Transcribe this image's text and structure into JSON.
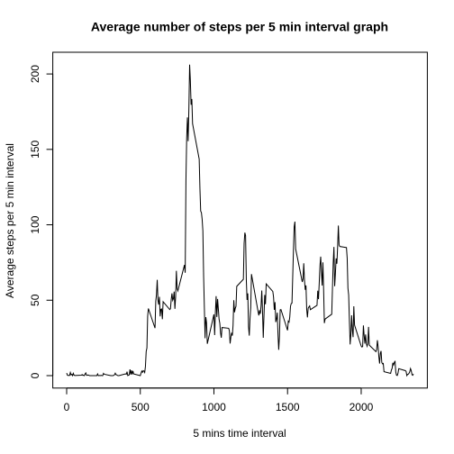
{
  "chart_data": {
    "type": "line",
    "title": "Average number of steps per 5 min interval graph",
    "xlabel": "5 mins time interval",
    "ylabel": "Average steps per 5 min interval",
    "color": "#000000",
    "xlim": [
      -94.2,
      2449.2
    ],
    "xticks": [
      0,
      500,
      1000,
      1500,
      2000
    ],
    "ylim": [
      -8.25,
      214.4
    ],
    "yticks": [
      0,
      50,
      100,
      150,
      200
    ],
    "x": [
      0,
      5,
      10,
      15,
      20,
      25,
      30,
      35,
      40,
      45,
      50,
      55,
      100,
      105,
      110,
      115,
      120,
      125,
      130,
      135,
      140,
      145,
      150,
      155,
      200,
      205,
      210,
      215,
      220,
      225,
      230,
      235,
      240,
      245,
      250,
      255,
      300,
      305,
      310,
      315,
      320,
      325,
      330,
      335,
      340,
      345,
      350,
      355,
      400,
      405,
      410,
      415,
      420,
      425,
      430,
      435,
      440,
      445,
      450,
      455,
      500,
      505,
      510,
      515,
      520,
      525,
      530,
      535,
      540,
      545,
      550,
      555,
      600,
      605,
      610,
      615,
      620,
      625,
      630,
      635,
      640,
      645,
      650,
      655,
      700,
      705,
      710,
      715,
      720,
      725,
      730,
      735,
      740,
      745,
      750,
      755,
      800,
      805,
      810,
      815,
      820,
      825,
      830,
      835,
      840,
      845,
      850,
      855,
      900,
      905,
      910,
      915,
      920,
      925,
      930,
      935,
      940,
      945,
      950,
      955,
      1000,
      1005,
      1010,
      1015,
      1020,
      1025,
      1030,
      1035,
      1040,
      1045,
      1050,
      1055,
      1100,
      1105,
      1110,
      1115,
      1120,
      1125,
      1130,
      1135,
      1140,
      1145,
      1150,
      1155,
      1200,
      1205,
      1210,
      1215,
      1220,
      1225,
      1230,
      1235,
      1240,
      1245,
      1250,
      1255,
      1300,
      1305,
      1310,
      1315,
      1320,
      1325,
      1330,
      1335,
      1340,
      1345,
      1350,
      1355,
      1400,
      1405,
      1410,
      1415,
      1420,
      1425,
      1430,
      1435,
      1440,
      1445,
      1450,
      1455,
      1500,
      1505,
      1510,
      1515,
      1520,
      1525,
      1530,
      1535,
      1540,
      1545,
      1550,
      1555,
      1600,
      1605,
      1610,
      1615,
      1620,
      1625,
      1630,
      1635,
      1640,
      1645,
      1650,
      1655,
      1700,
      1705,
      1710,
      1715,
      1720,
      1725,
      1730,
      1735,
      1740,
      1745,
      1750,
      1755,
      1800,
      1805,
      1810,
      1815,
      1820,
      1825,
      1830,
      1835,
      1840,
      1845,
      1850,
      1855,
      1900,
      1905,
      1910,
      1915,
      1920,
      1925,
      1930,
      1935,
      1940,
      1945,
      1950,
      1955,
      2000,
      2005,
      2010,
      2015,
      2020,
      2025,
      2030,
      2035,
      2040,
      2045,
      2050,
      2055,
      2100,
      2105,
      2110,
      2115,
      2120,
      2125,
      2130,
      2135,
      2140,
      2145,
      2150,
      2155,
      2200,
      2205,
      2210,
      2215,
      2220,
      2225,
      2230,
      2235,
      2240,
      2245,
      2250,
      2255,
      2300,
      2305,
      2310,
      2315,
      2320,
      2325,
      2330,
      2335,
      2340,
      2345,
      2350,
      2355
    ],
    "values": [
      1.7,
      0.3,
      0.1,
      0.2,
      0.1,
      2.1,
      0.5,
      0.9,
      0,
      1.5,
      0.3,
      0.1,
      0.3,
      0.7,
      0.2,
      0.3,
      0,
      1.1,
      1.8,
      0.2,
      0.2,
      0.4,
      0.3,
      0,
      0,
      0,
      1.1,
      0,
      0,
      0.1,
      0,
      0.2,
      0,
      0,
      1.5,
      0.9,
      0,
      0,
      0,
      0,
      0.2,
      0.6,
      1.6,
      0.6,
      0.5,
      0.1,
      0,
      0,
      1.2,
      0.9,
      2.6,
      0,
      0.3,
      0.5,
      4.1,
      0.7,
      3.5,
      0.8,
      3.1,
      1.1,
      0,
      1.6,
      3,
      2.2,
      3.3,
      3,
      2.1,
      6.1,
      16,
      18.3,
      39.5,
      44.5,
      31.5,
      49.3,
      53.8,
      63.5,
      50,
      47.1,
      52.2,
      39.3,
      44,
      44.2,
      37.4,
      49,
      43.8,
      44.4,
      50.5,
      54.5,
      49.9,
      51,
      55.7,
      44.3,
      52.3,
      69.5,
      57.8,
      56.2,
      73.4,
      68.2,
      129.4,
      157.5,
      171.2,
      155.4,
      177.3,
      206.2,
      195.9,
      179.6,
      183.4,
      167,
      143.5,
      124,
      109.1,
      108.1,
      103.7,
      95.96,
      66.2,
      45.2,
      24.8,
      38.8,
      35,
      21.1,
      40.6,
      26.9,
      42.4,
      52.7,
      38.9,
      50.8,
      44.3,
      37.4,
      34.7,
      28.3,
      25.1,
      31.9,
      31.4,
      29.7,
      21.3,
      25.5,
      28.4,
      26.5,
      33.4,
      50,
      42,
      44.6,
      46,
      59.2,
      63.9,
      87.7,
      94.8,
      92.8,
      63.4,
      50.2,
      54.5,
      32.4,
      26.5,
      37.7,
      45.1,
      67.3,
      42.3,
      39.9,
      43.3,
      40.98,
      46.2,
      56.4,
      42.8,
      25.1,
      39.97,
      53.5,
      47.3,
      60.8,
      55.8,
      51.96,
      43.6,
      48.7,
      35.5,
      37.5,
      41.8,
      27.5,
      17.1,
      26.1,
      43.6,
      43.8,
      30,
      36.1,
      35.5,
      38.8,
      45.96,
      47.8,
      48.1,
      65.3,
      82.9,
      98.7,
      102.1,
      83.96,
      62.1,
      64.1,
      74.5,
      63.2,
      56.9,
      59.8,
      43.9,
      38.6,
      44.7,
      45.5,
      46.2,
      43.7,
      46.6,
      56.3,
      50.7,
      61.2,
      72.7,
      78.9,
      68.9,
      59.7,
      75.1,
      56.5,
      34.8,
      37.5,
      40.7,
      58,
      74.7,
      85.3,
      59.3,
      67.8,
      77.7,
      74.2,
      85.3,
      99.5,
      86.6,
      85.6,
      84.9,
      77.8,
      58,
      53.4,
      36.3,
      20.7,
      27.4,
      40,
      30.2,
      25.5,
      46,
      33.5,
      19.6,
      19,
      19.3,
      33.3,
      26.8,
      21.2,
      27.3,
      21.3,
      19.5,
      21.3,
      32.3,
      20.2,
      15.9,
      17.2,
      23.5,
      19.2,
      12.5,
      8,
      14.7,
      16.3,
      8.7,
      7.8,
      8.1,
      2.6,
      1.5,
      3.7,
      4.8,
      8.5,
      7.1,
      8.7,
      9.75,
      2.2,
      0.3,
      0.1,
      1.6,
      4.6,
      3.3,
      2.8,
      0,
      0.8,
      1,
      1.6,
      2.6,
      4.7,
      3.3,
      0.6,
      0.2,
      1.1
    ]
  }
}
